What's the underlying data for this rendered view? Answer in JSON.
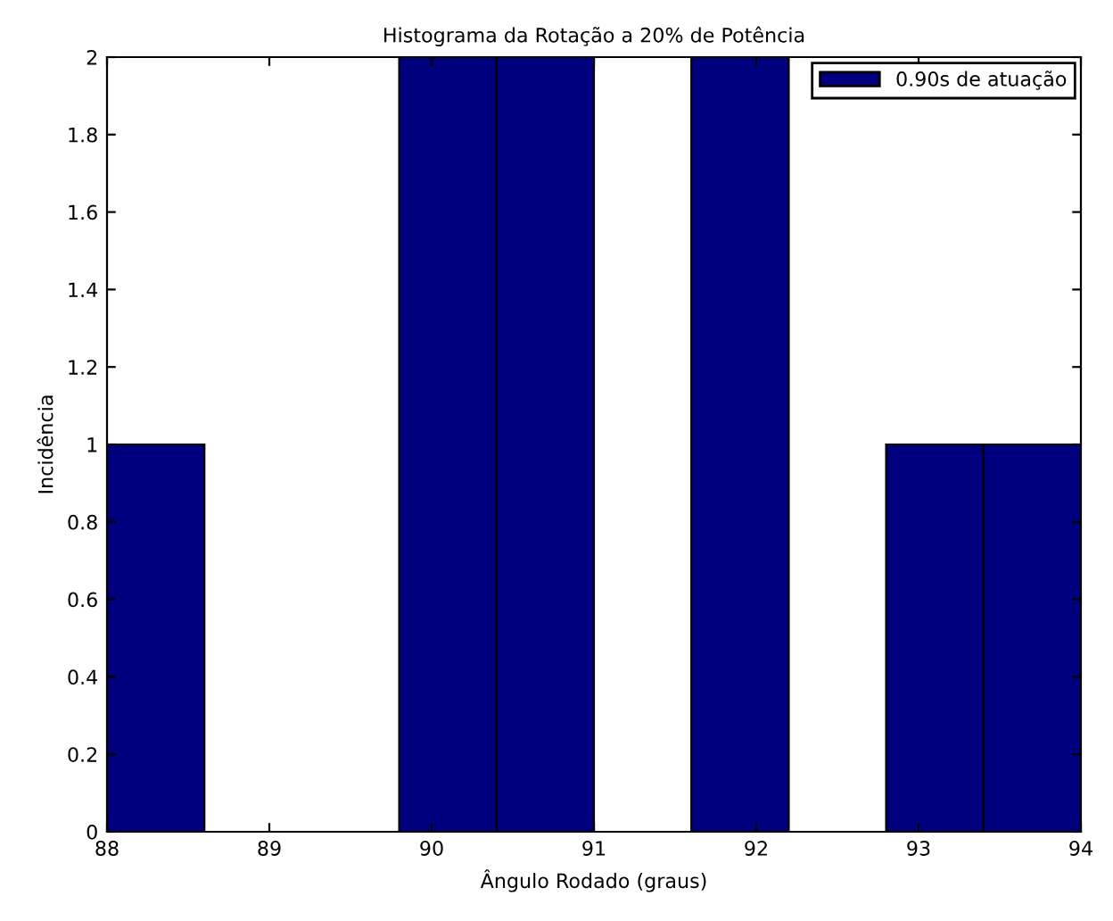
{
  "chart_data": {
    "type": "histogram",
    "title": "Histograma da Rotação a 20% de Potência",
    "xlabel": "Ângulo Rodado (graus)",
    "ylabel": "Incidência",
    "bins": [
      88,
      88.6,
      89.2,
      89.8,
      90.4,
      91,
      91.6,
      92.2,
      92.8,
      93.4,
      94
    ],
    "series": [
      {
        "name": "0.90s de atuação",
        "color": "#00007f",
        "values": [
          1,
          0,
          0,
          2,
          2,
          0,
          2,
          0,
          1,
          1
        ]
      }
    ],
    "xlim": [
      88,
      94
    ],
    "xticks": [
      88,
      89,
      90,
      91,
      92,
      93,
      94
    ],
    "ylim": [
      0,
      2
    ],
    "yticks": [
      0,
      0.2,
      0.4,
      0.6,
      0.8,
      1,
      1.2,
      1.4,
      1.6,
      1.8,
      2
    ],
    "grid": false,
    "legend": "top right"
  }
}
